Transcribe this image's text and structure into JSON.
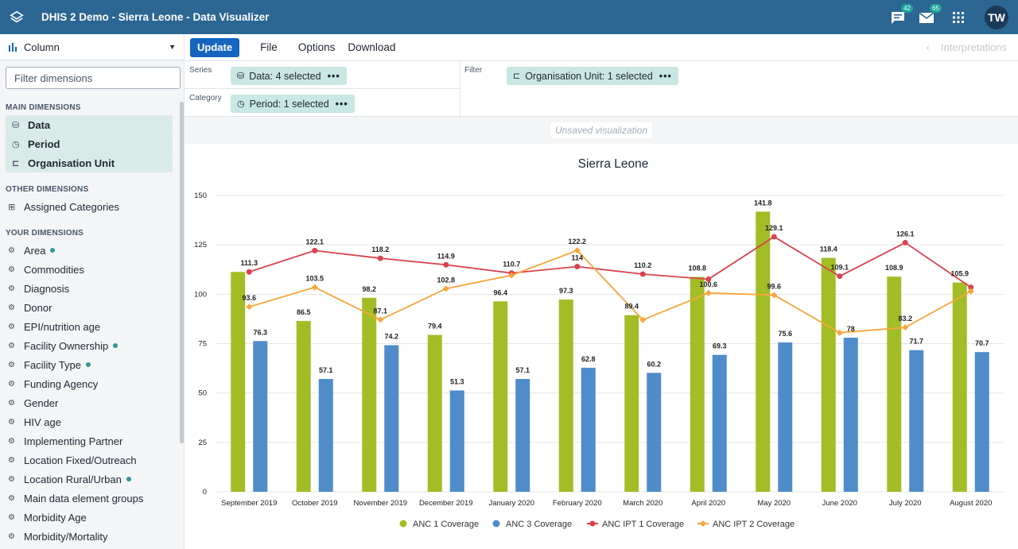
{
  "app": {
    "title": "DHIS 2 Demo - Sierra Leone - Data Visualizer",
    "messages_count": "42",
    "mail_count": "65",
    "avatar_initials": "TW"
  },
  "sidebar": {
    "vis_type": "Column",
    "filter_placeholder": "Filter dimensions",
    "main_header": "MAIN DIMENSIONS",
    "main_items": [
      "Data",
      "Period",
      "Organisation Unit"
    ],
    "other_header": "OTHER DIMENSIONS",
    "other_items": [
      "Assigned Categories"
    ],
    "your_header": "YOUR DIMENSIONS",
    "your_items": [
      {
        "label": "Area",
        "dot": true
      },
      {
        "label": "Commodities",
        "dot": false
      },
      {
        "label": "Diagnosis",
        "dot": false
      },
      {
        "label": "Donor",
        "dot": false
      },
      {
        "label": "EPI/nutrition age",
        "dot": false
      },
      {
        "label": "Facility Ownership",
        "dot": true
      },
      {
        "label": "Facility Type",
        "dot": true
      },
      {
        "label": "Funding Agency",
        "dot": false
      },
      {
        "label": "Gender",
        "dot": false
      },
      {
        "label": "HIV age",
        "dot": false
      },
      {
        "label": "Implementing Partner",
        "dot": false
      },
      {
        "label": "Location Fixed/Outreach",
        "dot": false
      },
      {
        "label": "Location Rural/Urban",
        "dot": true
      },
      {
        "label": "Main data element groups",
        "dot": false
      },
      {
        "label": "Morbidity Age",
        "dot": false
      },
      {
        "label": "Morbidity/Mortality",
        "dot": false
      }
    ]
  },
  "menu": {
    "update": "Update",
    "file": "File",
    "options": "Options",
    "download": "Download",
    "interpretations": "Interpretations"
  },
  "layout": {
    "series_label": "Series",
    "category_label": "Category",
    "filter_label": "Filter",
    "series_chip": "Data: 4 selected",
    "category_chip": "Period: 1 selected",
    "filter_chip": "Organisation Unit: 1 selected"
  },
  "status": {
    "unsaved": "Unsaved visualization"
  },
  "chart_data": {
    "type": "bar",
    "title": "Sierra Leone",
    "categories": [
      "September 2019",
      "October 2019",
      "November 2019",
      "December 2019",
      "January 2020",
      "February 2020",
      "March 2020",
      "April 2020",
      "May 2020",
      "June 2020",
      "July 2020",
      "August 2020"
    ],
    "ylim": [
      0,
      150
    ],
    "yticks": [
      0,
      25,
      50,
      75,
      100,
      125,
      150
    ],
    "series": [
      {
        "name": "ANC 1 Coverage",
        "kind": "bar",
        "color": "#a2bd26",
        "values": [
          111.3,
          86.5,
          98.2,
          79.4,
          96.4,
          97.3,
          89.4,
          108.8,
          141.8,
          118.4,
          108.9,
          105.9
        ]
      },
      {
        "name": "ANC 3 Coverage",
        "kind": "bar",
        "color": "#4f8cc9",
        "values": [
          76.3,
          57.1,
          74.2,
          51.3,
          57.1,
          62.8,
          60.2,
          69.3,
          75.6,
          78,
          71.7,
          70.7
        ]
      },
      {
        "name": "ANC IPT 1 Coverage",
        "kind": "line",
        "color": "#d9434f",
        "values": [
          111.3,
          122.1,
          118.2,
          114.9,
          110.7,
          114,
          110.2,
          107.6,
          129.1,
          109.1,
          126.1,
          103.5
        ]
      },
      {
        "name": "ANC IPT 2 Coverage",
        "kind": "line",
        "color": "#f9a53a",
        "values": [
          93.6,
          103.5,
          87.1,
          102.8,
          109.6,
          122.2,
          87,
          100.6,
          99.6,
          80.5,
          83.2,
          101.5
        ]
      }
    ],
    "data_labels": [
      {
        "value": "111.3",
        "cat": 0,
        "y": 111.3
      },
      {
        "value": "122.1",
        "cat": 1,
        "y": 122.1
      },
      {
        "value": "118.2",
        "cat": 2,
        "y": 118.2
      },
      {
        "value": "114.9",
        "cat": 3,
        "y": 114.9
      },
      {
        "value": "110.7",
        "cat": 4,
        "y": 110.7
      },
      {
        "value": "122.2",
        "cat": 5,
        "y": 122.2
      },
      {
        "value": "114",
        "cat": 5,
        "y": 114
      },
      {
        "value": "110.2",
        "cat": 6,
        "y": 110.2
      },
      {
        "value": "108.8",
        "cat": 7,
        "y": 108.8
      },
      {
        "value": "141.8",
        "cat": 8,
        "y": 141.8
      },
      {
        "value": "129.1",
        "cat": 8,
        "y": 129.1
      },
      {
        "value": "118.4",
        "cat": 9,
        "y": 118.4
      },
      {
        "value": "109.1",
        "cat": 9,
        "y": 109.1
      },
      {
        "value": "126.1",
        "cat": 10,
        "y": 126.1
      },
      {
        "value": "105.9",
        "cat": 11,
        "y": 105.9
      },
      {
        "value": "93.6",
        "cat": 0,
        "y": 93.6
      },
      {
        "value": "103.5",
        "cat": 1,
        "y": 103.5
      },
      {
        "value": "86.5",
        "cat": 1,
        "y": 86.5
      },
      {
        "value": "98.2",
        "cat": 2,
        "y": 98.2
      },
      {
        "value": "87.1",
        "cat": 2,
        "y": 87.1
      },
      {
        "value": "102.8",
        "cat": 3,
        "y": 102.8
      },
      {
        "value": "79.4",
        "cat": 3,
        "y": 79.4
      },
      {
        "value": "96.4",
        "cat": 4,
        "y": 96.4
      },
      {
        "value": "97.3",
        "cat": 5,
        "y": 97.3
      },
      {
        "value": "89.4",
        "cat": 6,
        "y": 89.4
      },
      {
        "value": "100.6",
        "cat": 7,
        "y": 100.6
      },
      {
        "value": "99.6",
        "cat": 8,
        "y": 99.6
      },
      {
        "value": "108.9",
        "cat": 10,
        "y": 108.9
      },
      {
        "value": "83.2",
        "cat": 10,
        "y": 83.2
      },
      {
        "value": "76.3",
        "cat": 0,
        "y": 76.3
      },
      {
        "value": "57.1",
        "cat": 1,
        "y": 57.1
      },
      {
        "value": "74.2",
        "cat": 2,
        "y": 74.2
      },
      {
        "value": "51.3",
        "cat": 3,
        "y": 51.3
      },
      {
        "value": "57.1",
        "cat": 4,
        "y": 57.1
      },
      {
        "value": "62.8",
        "cat": 5,
        "y": 62.8
      },
      {
        "value": "60.2",
        "cat": 6,
        "y": 60.2
      },
      {
        "value": "69.3",
        "cat": 7,
        "y": 69.3
      },
      {
        "value": "75.6",
        "cat": 8,
        "y": 75.6
      },
      {
        "value": "78",
        "cat": 9,
        "y": 78
      },
      {
        "value": "71.7",
        "cat": 10,
        "y": 71.7
      },
      {
        "value": "70.7",
        "cat": 11,
        "y": 70.7
      }
    ]
  }
}
